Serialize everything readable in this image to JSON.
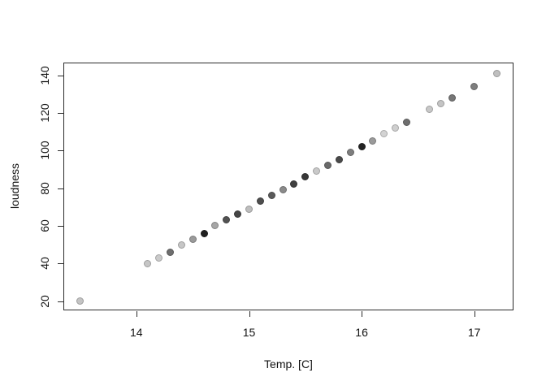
{
  "figure": {
    "background": "#ffffff",
    "axis_color": "#2b2b2b",
    "text_color": "#111111"
  },
  "chart_data": {
    "type": "scatter",
    "title": "",
    "xlabel": "Temp. [C]",
    "ylabel": "loudness",
    "x_ticks": [
      14,
      15,
      16,
      17
    ],
    "y_ticks": [
      20,
      40,
      60,
      80,
      100,
      120,
      140
    ],
    "xlim": [
      13.352,
      17.352
    ],
    "ylim": [
      14.8,
      146.7
    ],
    "grid": false,
    "legend": false,
    "marker": "filled-circle",
    "marker_size_px": 9,
    "points": [
      {
        "x": 13.5,
        "y": 20,
        "color": "#c4c4c4"
      },
      {
        "x": 14.1,
        "y": 40,
        "color": "#c6c6c6"
      },
      {
        "x": 14.2,
        "y": 43,
        "color": "#cacaca"
      },
      {
        "x": 14.3,
        "y": 46,
        "color": "#6e6e6e"
      },
      {
        "x": 14.4,
        "y": 50,
        "color": "#c6c6c6"
      },
      {
        "x": 14.5,
        "y": 53,
        "color": "#9a9a9a"
      },
      {
        "x": 14.6,
        "y": 56,
        "color": "#1f1f1f"
      },
      {
        "x": 14.7,
        "y": 60,
        "color": "#a6a6a6"
      },
      {
        "x": 14.8,
        "y": 63,
        "color": "#525252"
      },
      {
        "x": 14.9,
        "y": 66,
        "color": "#464646"
      },
      {
        "x": 15.0,
        "y": 69,
        "color": "#bebebe"
      },
      {
        "x": 15.1,
        "y": 73,
        "color": "#4e4e4e"
      },
      {
        "x": 15.2,
        "y": 76,
        "color": "#5a5a5a"
      },
      {
        "x": 15.3,
        "y": 79,
        "color": "#8a8a8a"
      },
      {
        "x": 15.4,
        "y": 82,
        "color": "#404040"
      },
      {
        "x": 15.5,
        "y": 86,
        "color": "#383838"
      },
      {
        "x": 15.6,
        "y": 89,
        "color": "#c9c9c9"
      },
      {
        "x": 15.7,
        "y": 92,
        "color": "#6a6a6a"
      },
      {
        "x": 15.8,
        "y": 95,
        "color": "#4a4a4a"
      },
      {
        "x": 15.9,
        "y": 99,
        "color": "#7e7e7e"
      },
      {
        "x": 16.0,
        "y": 102,
        "color": "#242424"
      },
      {
        "x": 16.1,
        "y": 105,
        "color": "#9a9a9a"
      },
      {
        "x": 16.2,
        "y": 109,
        "color": "#d3d3d3"
      },
      {
        "x": 16.3,
        "y": 112,
        "color": "#cfcfcf"
      },
      {
        "x": 16.4,
        "y": 115,
        "color": "#6e6e6e"
      },
      {
        "x": 16.6,
        "y": 122,
        "color": "#c8c8c8"
      },
      {
        "x": 16.7,
        "y": 125,
        "color": "#c4c4c4"
      },
      {
        "x": 16.8,
        "y": 128,
        "color": "#767676"
      },
      {
        "x": 17.0,
        "y": 134,
        "color": "#7e7e7e"
      },
      {
        "x": 17.2,
        "y": 141,
        "color": "#bfbfbf"
      }
    ]
  }
}
